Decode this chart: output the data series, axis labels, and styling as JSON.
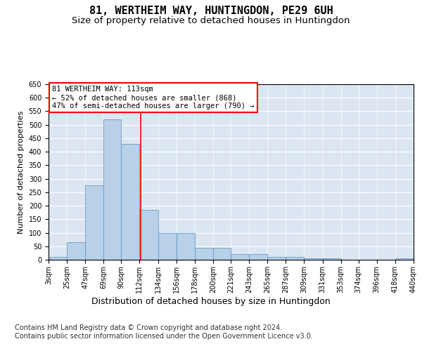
{
  "title": "81, WERTHEIM WAY, HUNTINGDON, PE29 6UH",
  "subtitle": "Size of property relative to detached houses in Huntingdon",
  "xlabel": "Distribution of detached houses by size in Huntingdon",
  "ylabel": "Number of detached properties",
  "bar_color": "#b8d0e8",
  "bar_edge_color": "#5a8fbf",
  "background_color": "#dce6f2",
  "annotation_text": "81 WERTHEIM WAY: 113sqm\n← 52% of detached houses are smaller (868)\n47% of semi-detached houses are larger (790) →",
  "property_line_x": 113,
  "ylim": [
    0,
    650
  ],
  "yticks": [
    0,
    50,
    100,
    150,
    200,
    250,
    300,
    350,
    400,
    450,
    500,
    550,
    600,
    650
  ],
  "bin_edges": [
    3,
    25,
    47,
    69,
    90,
    112,
    134,
    156,
    178,
    200,
    221,
    243,
    265,
    287,
    309,
    331,
    353,
    374,
    396,
    418,
    440
  ],
  "bar_heights": [
    10,
    65,
    275,
    520,
    430,
    185,
    100,
    100,
    45,
    45,
    20,
    20,
    10,
    10,
    5,
    5,
    0,
    0,
    0,
    5
  ],
  "footer_text": "Contains HM Land Registry data © Crown copyright and database right 2024.\nContains public sector information licensed under the Open Government Licence v3.0.",
  "title_fontsize": 11,
  "subtitle_fontsize": 9.5,
  "tick_label_fontsize": 7,
  "ylabel_fontsize": 8,
  "xlabel_fontsize": 9,
  "annotation_fontsize": 7.5,
  "footer_fontsize": 7
}
